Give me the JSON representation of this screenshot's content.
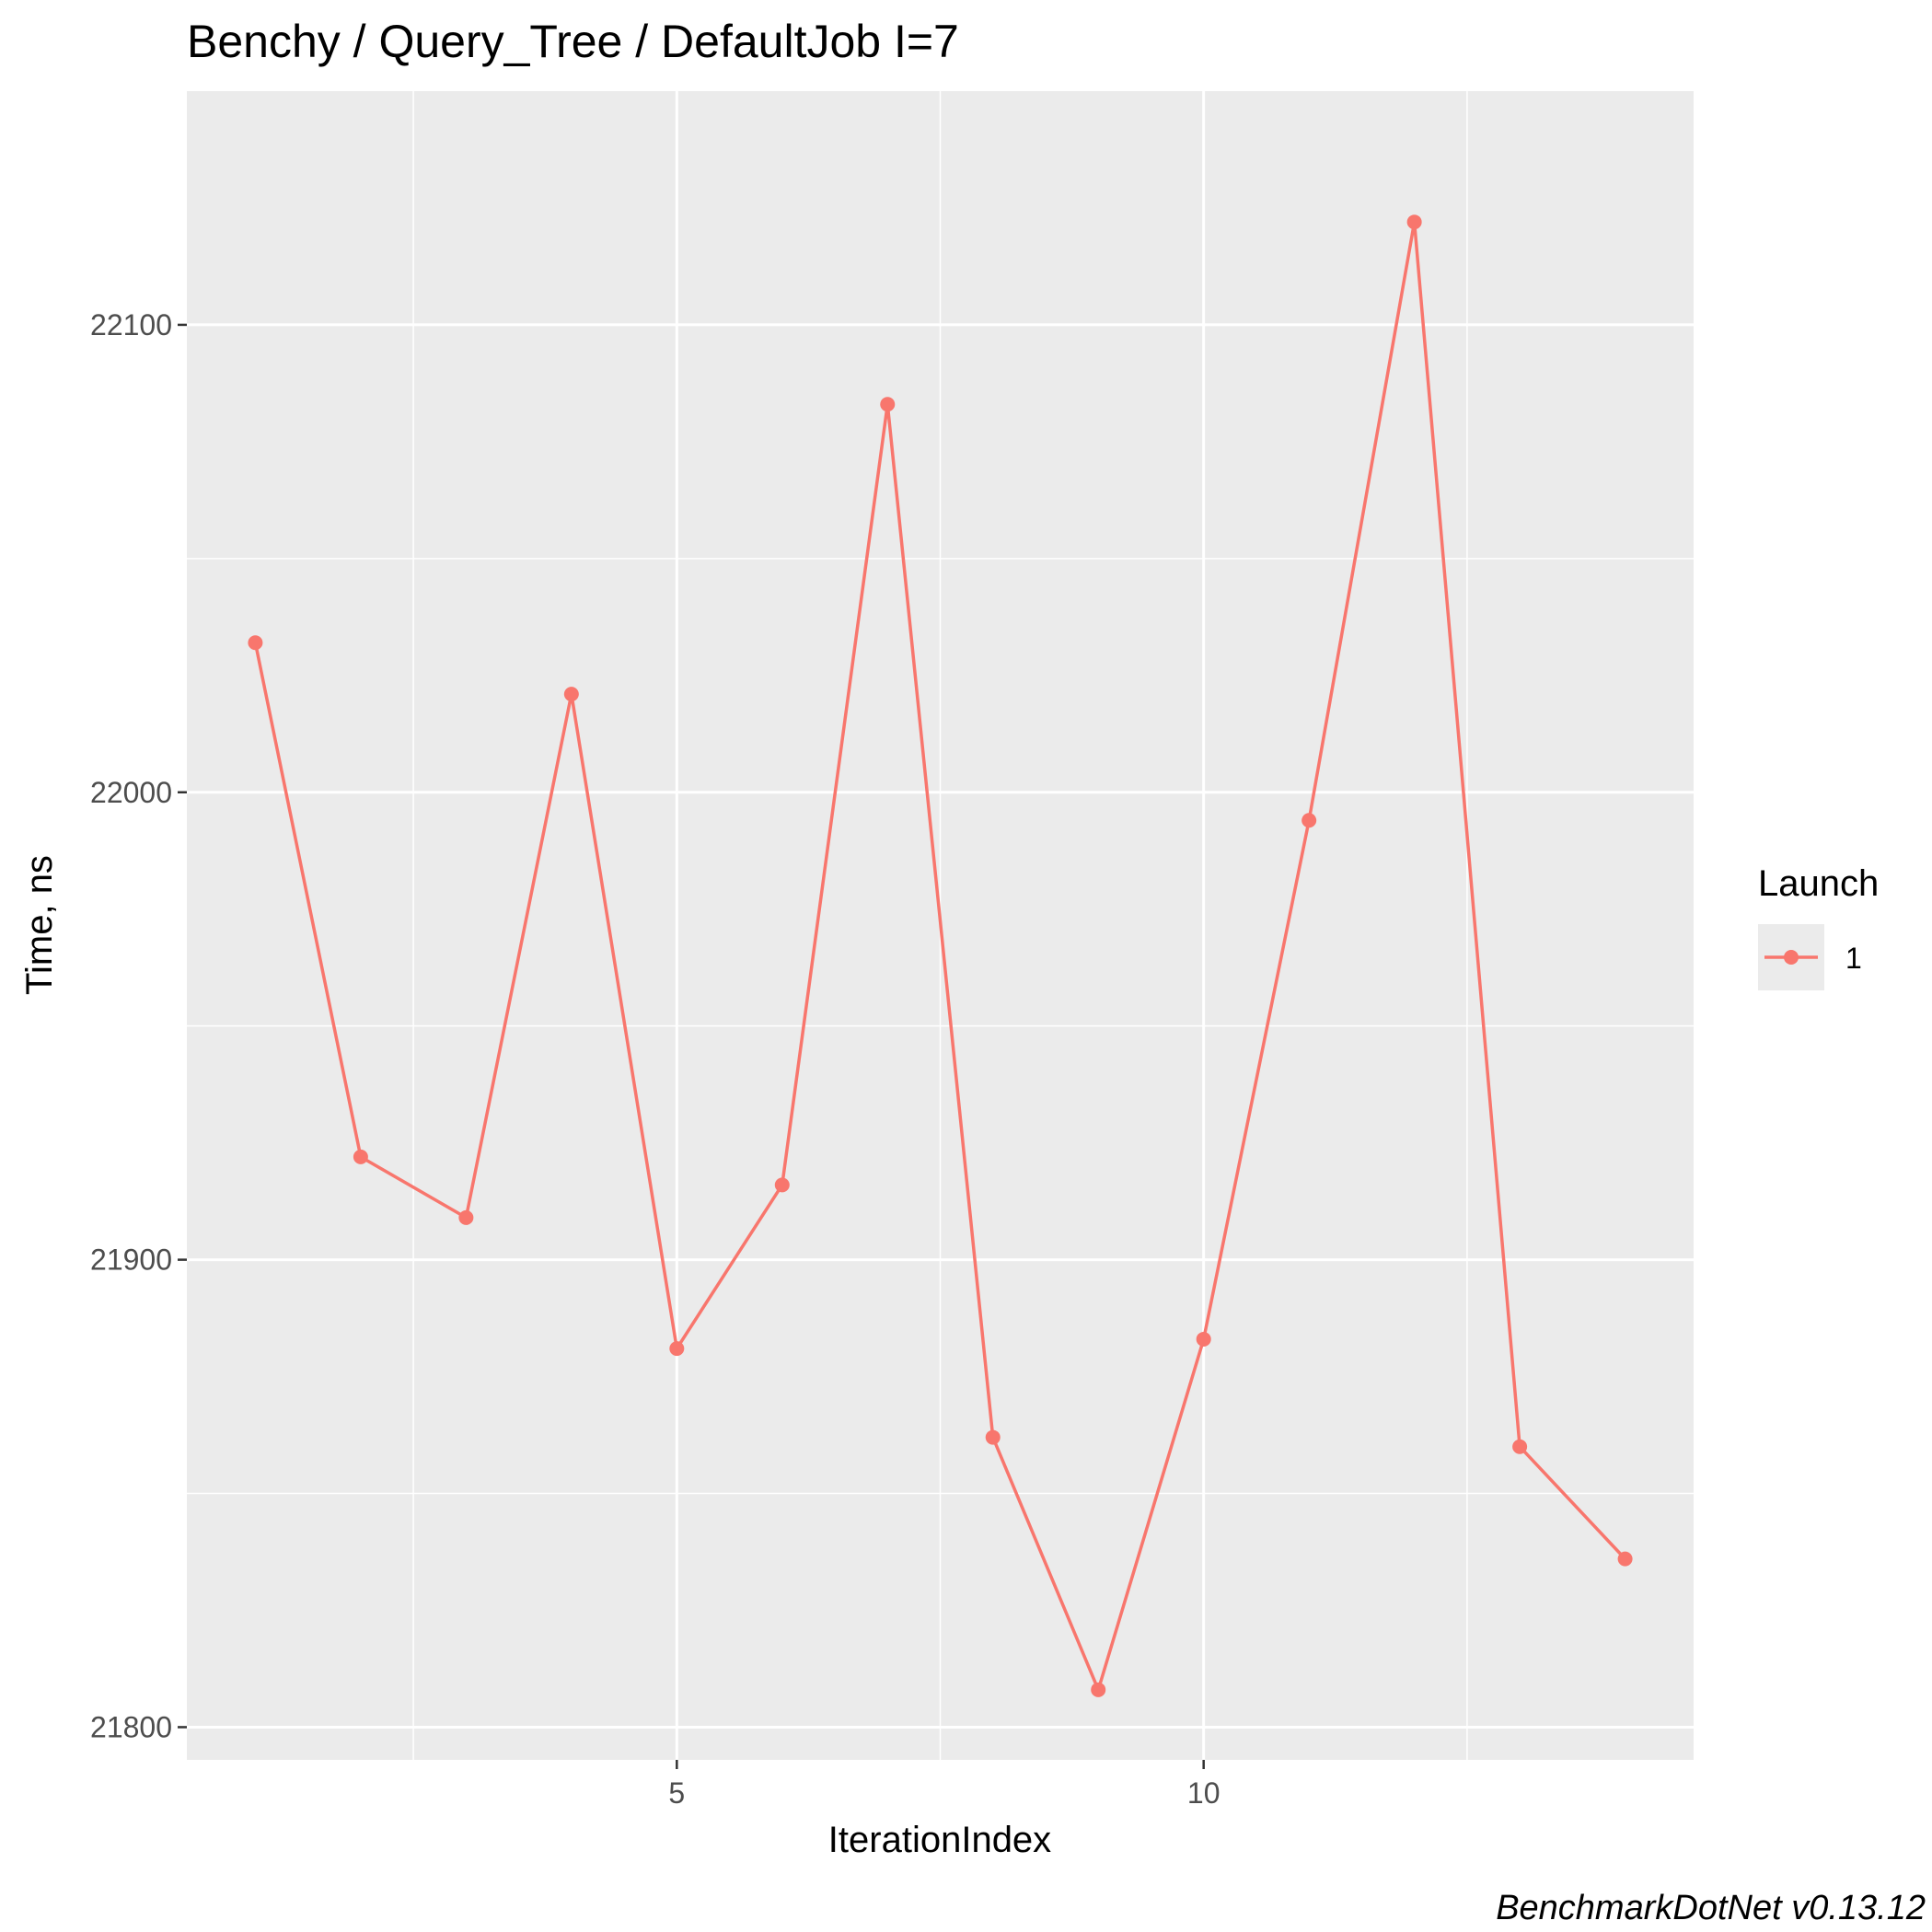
{
  "chart_data": {
    "type": "line",
    "title": "Benchy / Query_Tree / DefaultJob I=7",
    "xlabel": "IterationIndex",
    "ylabel": "Time, ns",
    "caption": "BenchmarkDotNet v0.13.12",
    "x": [
      1,
      2,
      3,
      4,
      5,
      6,
      7,
      8,
      9,
      10,
      11,
      12,
      13,
      14
    ],
    "series": [
      {
        "name": "1",
        "color": "#F8766D",
        "values": [
          22032,
          21922,
          21909,
          22021,
          21881,
          21916,
          22083,
          21862,
          21808,
          21883,
          21994,
          22122,
          21860,
          21836
        ]
      }
    ],
    "xlim": [
      0.35,
      14.65
    ],
    "ylim": [
      21793,
      22150
    ],
    "x_ticks": [
      5,
      10
    ],
    "x_tick_labels": [
      "5",
      "10"
    ],
    "x_minor_ticks": [
      2.5,
      7.5,
      12.5
    ],
    "y_ticks": [
      21800,
      21900,
      22000,
      22100
    ],
    "y_tick_labels": [
      "21800",
      "21900",
      "22000",
      "22100"
    ],
    "y_minor_ticks": [
      21850,
      21950,
      22050
    ],
    "legend": {
      "title": "Launch",
      "placement": "right",
      "entries": [
        "1"
      ]
    },
    "grid": true,
    "panel_background": "#EBEBEB",
    "grid_color": "#FFFFFF"
  }
}
